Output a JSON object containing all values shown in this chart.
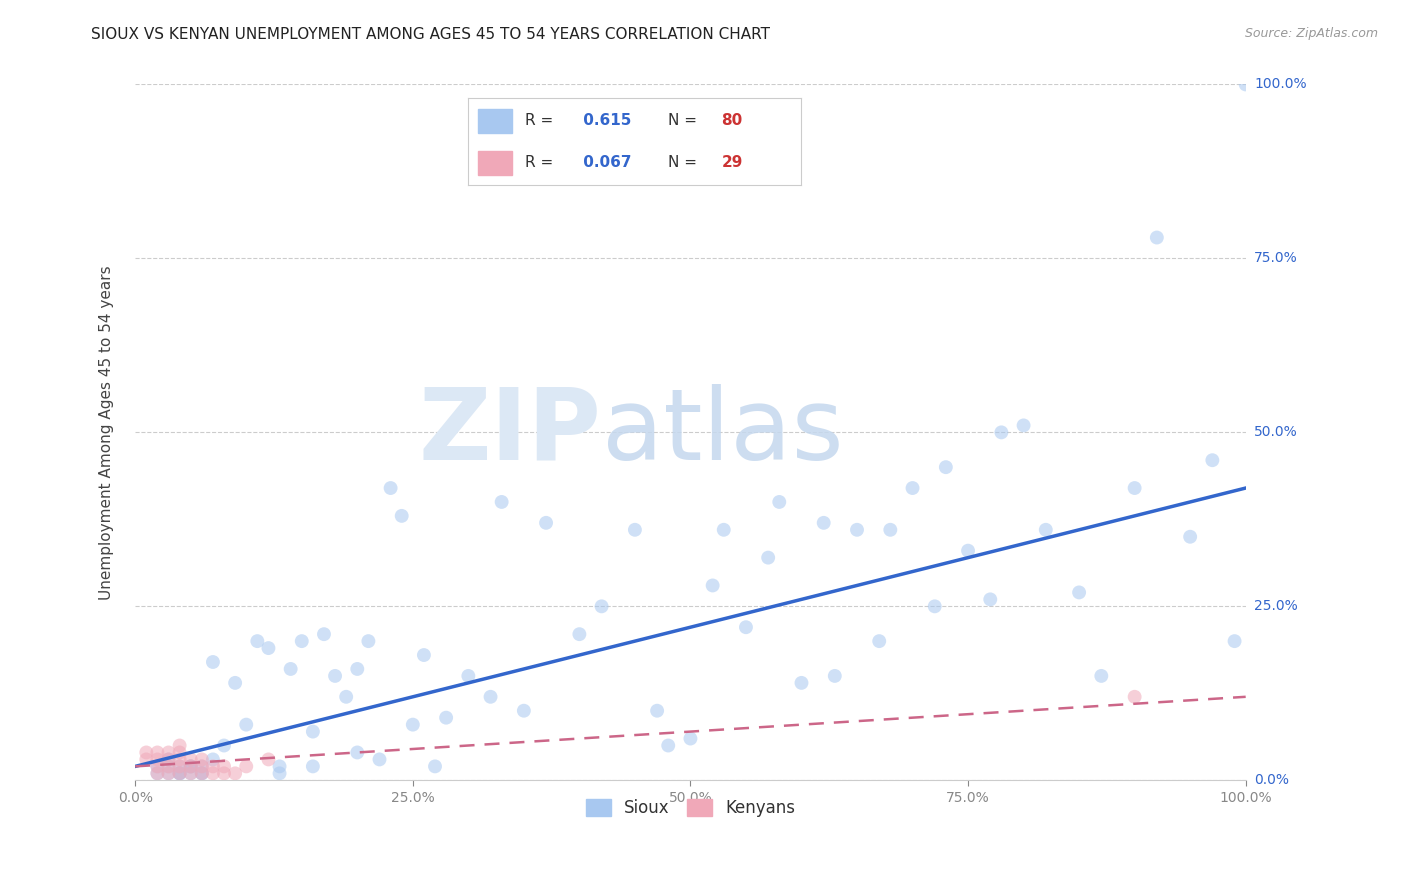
{
  "title": "SIOUX VS KENYAN UNEMPLOYMENT AMONG AGES 45 TO 54 YEARS CORRELATION CHART",
  "source": "Source: ZipAtlas.com",
  "ylabel": "Unemployment Among Ages 45 to 54 years",
  "xlim": [
    0,
    1.0
  ],
  "ylim": [
    0,
    1.0
  ],
  "xtick_labels": [
    "0.0%",
    "25.0%",
    "50.0%",
    "75.0%",
    "100.0%"
  ],
  "ytick_labels": [
    "0.0%",
    "25.0%",
    "50.0%",
    "75.0%",
    "100.0%"
  ],
  "background_color": "#ffffff",
  "grid_color": "#cccccc",
  "sioux_color": "#a8c8f0",
  "kenyan_color": "#f0a8b8",
  "sioux_line_color": "#3366cc",
  "kenyan_line_color": "#cc6688",
  "sioux_R": "0.615",
  "sioux_N": "80",
  "kenyan_R": "0.067",
  "kenyan_N": "29",
  "sioux_x": [
    0.02,
    0.02,
    0.03,
    0.03,
    0.03,
    0.04,
    0.04,
    0.04,
    0.04,
    0.05,
    0.05,
    0.05,
    0.05,
    0.06,
    0.06,
    0.06,
    0.07,
    0.07,
    0.08,
    0.09,
    0.1,
    0.11,
    0.12,
    0.13,
    0.13,
    0.14,
    0.15,
    0.16,
    0.16,
    0.17,
    0.18,
    0.19,
    0.2,
    0.2,
    0.21,
    0.22,
    0.23,
    0.24,
    0.25,
    0.26,
    0.27,
    0.28,
    0.3,
    0.32,
    0.33,
    0.35,
    0.37,
    0.4,
    0.42,
    0.45,
    0.47,
    0.48,
    0.5,
    0.52,
    0.53,
    0.55,
    0.57,
    0.58,
    0.6,
    0.62,
    0.63,
    0.65,
    0.67,
    0.68,
    0.7,
    0.72,
    0.73,
    0.75,
    0.77,
    0.78,
    0.8,
    0.82,
    0.85,
    0.87,
    0.9,
    0.92,
    0.95,
    0.97,
    0.99,
    1.0
  ],
  "sioux_y": [
    0.01,
    0.02,
    0.01,
    0.02,
    0.03,
    0.01,
    0.02,
    0.01,
    0.01,
    0.02,
    0.01,
    0.02,
    0.02,
    0.01,
    0.02,
    0.01,
    0.17,
    0.03,
    0.05,
    0.14,
    0.08,
    0.2,
    0.19,
    0.02,
    0.01,
    0.16,
    0.2,
    0.02,
    0.07,
    0.21,
    0.15,
    0.12,
    0.04,
    0.16,
    0.2,
    0.03,
    0.42,
    0.38,
    0.08,
    0.18,
    0.02,
    0.09,
    0.15,
    0.12,
    0.4,
    0.1,
    0.37,
    0.21,
    0.25,
    0.36,
    0.1,
    0.05,
    0.06,
    0.28,
    0.36,
    0.22,
    0.32,
    0.4,
    0.14,
    0.37,
    0.15,
    0.36,
    0.2,
    0.36,
    0.42,
    0.25,
    0.45,
    0.33,
    0.26,
    0.5,
    0.51,
    0.36,
    0.27,
    0.15,
    0.42,
    0.78,
    0.35,
    0.46,
    0.2,
    1.0
  ],
  "kenyan_x": [
    0.01,
    0.01,
    0.02,
    0.02,
    0.02,
    0.02,
    0.03,
    0.03,
    0.03,
    0.03,
    0.04,
    0.04,
    0.04,
    0.04,
    0.04,
    0.05,
    0.05,
    0.05,
    0.06,
    0.06,
    0.06,
    0.07,
    0.07,
    0.08,
    0.08,
    0.09,
    0.1,
    0.12,
    0.9
  ],
  "kenyan_y": [
    0.03,
    0.04,
    0.01,
    0.02,
    0.03,
    0.04,
    0.01,
    0.02,
    0.03,
    0.04,
    0.01,
    0.02,
    0.03,
    0.04,
    0.05,
    0.01,
    0.02,
    0.03,
    0.01,
    0.02,
    0.03,
    0.01,
    0.02,
    0.01,
    0.02,
    0.01,
    0.02,
    0.03,
    0.12
  ],
  "title_fontsize": 11,
  "axis_label_fontsize": 11,
  "tick_fontsize": 10,
  "marker_size": 100,
  "marker_alpha": 0.55
}
